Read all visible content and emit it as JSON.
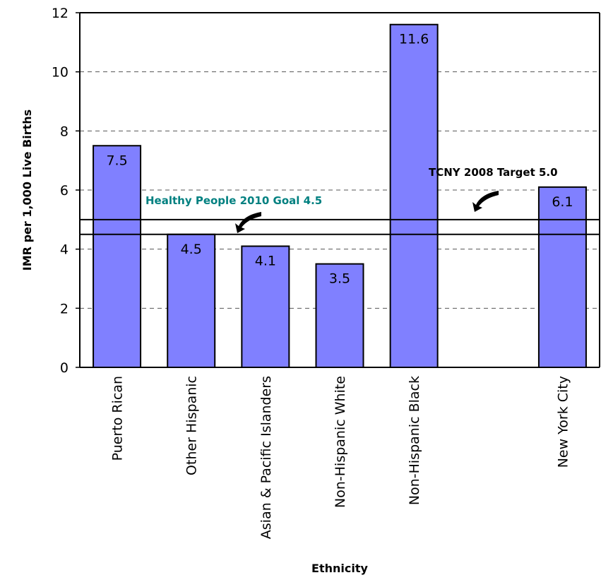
{
  "chart_data": {
    "type": "bar",
    "title": "",
    "xlabel": "Ethnicity",
    "ylabel": "IMR per 1,000 Live Births",
    "ylim": [
      0,
      12
    ],
    "yticks": [
      "0",
      "2",
      "4",
      "6",
      "8",
      "10",
      "12"
    ],
    "grid": "horizontal dashed",
    "categories": [
      "Puerto Rican",
      "Other Hispanic",
      "Asian & Pacific Islanders",
      "Non-Hispanic White",
      "Non-Hispanic Black",
      "",
      "New York City"
    ],
    "values": [
      7.5,
      4.5,
      4.1,
      3.5,
      11.6,
      null,
      6.1
    ],
    "data_labels": [
      "7.5",
      "4.5",
      "4.1",
      "3.5",
      "11.6",
      "",
      "6.1"
    ],
    "bar_color": "#8080FF",
    "reference_lines": [
      {
        "label": "Healthy People 2010 Goal 4.5",
        "value": 4.5,
        "color": "#008080"
      },
      {
        "label": "TCNY 2008 Target 5.0",
        "value": 5.0,
        "color": "#000000"
      }
    ]
  }
}
